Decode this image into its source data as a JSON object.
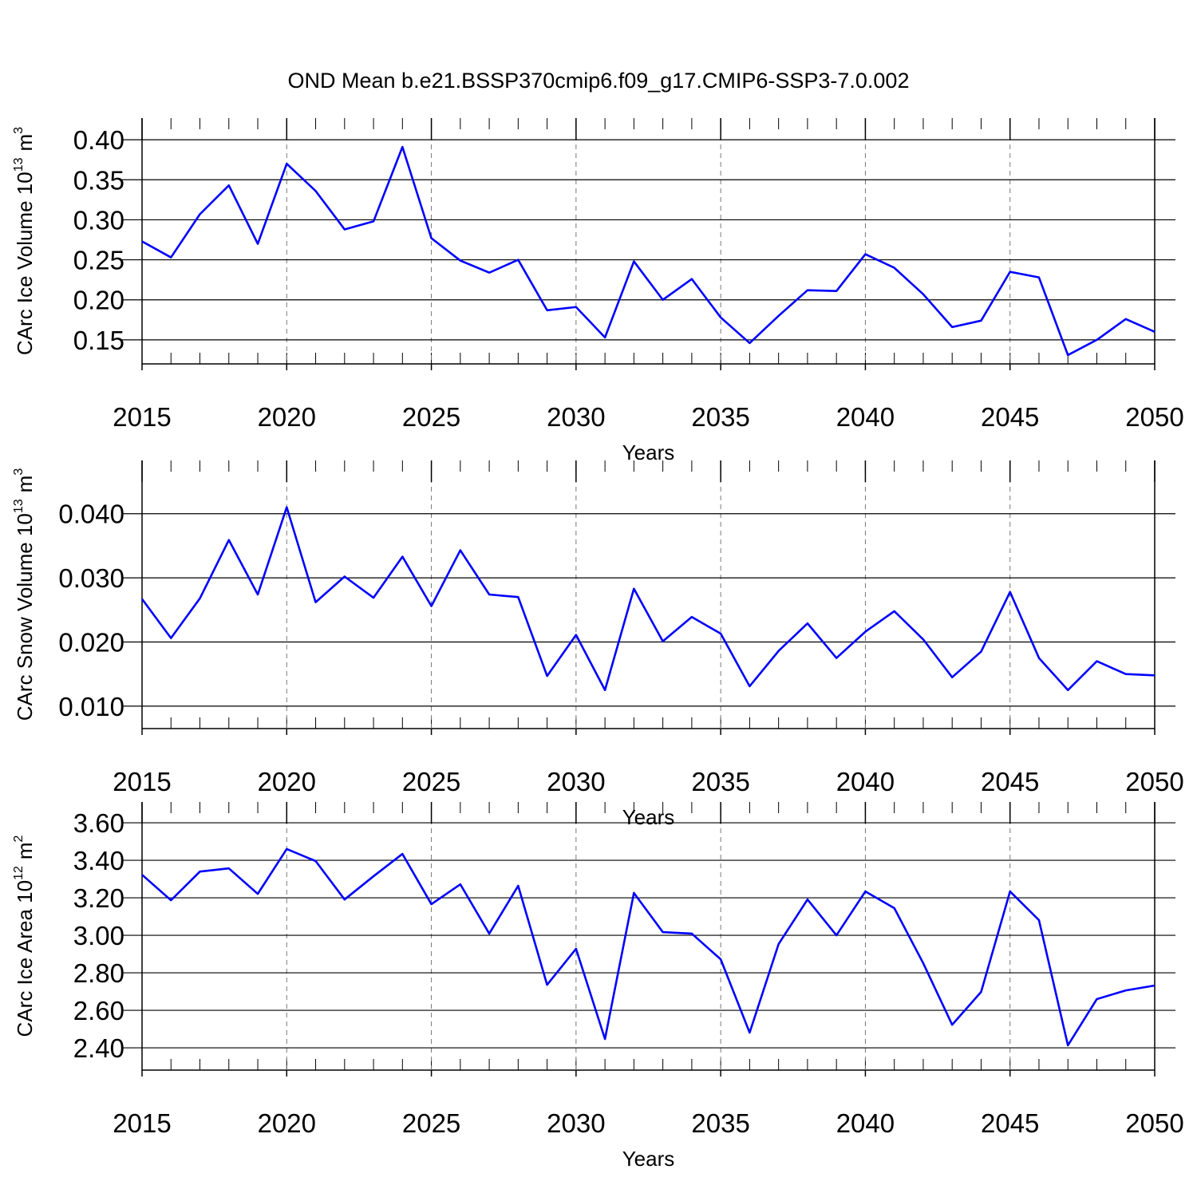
{
  "title": "OND Mean b.e21.BSSP370cmip6.f09_g17.CMIP6-SSP3-7.0.002",
  "chart_data": [
    {
      "type": "line",
      "ylabel": {
        "text": "CArc Ice Volume 10",
        "exp": "13",
        "unit": "m",
        "unit_exp": "3"
      },
      "xlabel": "Years",
      "x": [
        2015,
        2016,
        2017,
        2018,
        2019,
        2020,
        2021,
        2022,
        2023,
        2024,
        2025,
        2026,
        2027,
        2028,
        2029,
        2030,
        2031,
        2032,
        2033,
        2034,
        2035,
        2036,
        2037,
        2038,
        2039,
        2040,
        2041,
        2042,
        2043,
        2044,
        2045,
        2046,
        2047,
        2048,
        2049,
        2050
      ],
      "values": [
        0.273,
        0.253,
        0.307,
        0.343,
        0.27,
        0.37,
        0.336,
        0.288,
        0.298,
        0.391,
        0.277,
        0.249,
        0.234,
        0.25,
        0.187,
        0.191,
        0.153,
        0.248,
        0.2,
        0.226,
        0.178,
        0.146,
        0.18,
        0.212,
        0.211,
        0.257,
        0.24,
        0.207,
        0.166,
        0.174,
        0.235,
        0.228,
        0.131,
        0.15,
        0.176,
        0.16
      ],
      "color": "#0000ff",
      "xlim": [
        2015,
        2050
      ],
      "xticks": [
        2015,
        2020,
        2025,
        2030,
        2035,
        2040,
        2045,
        2050
      ],
      "ylim": [
        0.12,
        0.427
      ],
      "yticks": [
        {
          "value": 0.15,
          "label": "0.15"
        },
        {
          "value": 0.2,
          "label": "0.20"
        },
        {
          "value": 0.25,
          "label": "0.25"
        },
        {
          "value": 0.3,
          "label": "0.30"
        },
        {
          "value": 0.35,
          "label": "0.35"
        },
        {
          "value": 0.4,
          "label": "0.40"
        }
      ],
      "grid": true
    },
    {
      "type": "line",
      "ylabel": {
        "text": "CArc Snow Volume 10",
        "exp": "13",
        "unit": "m",
        "unit_exp": "3"
      },
      "xlabel": "Years",
      "x": [
        2015,
        2016,
        2017,
        2018,
        2019,
        2020,
        2021,
        2022,
        2023,
        2024,
        2025,
        2026,
        2027,
        2028,
        2029,
        2030,
        2031,
        2032,
        2033,
        2034,
        2035,
        2036,
        2037,
        2038,
        2039,
        2040,
        2041,
        2042,
        2043,
        2044,
        2045,
        2046,
        2047,
        2048,
        2049,
        2050
      ],
      "values": [
        0.0267,
        0.0206,
        0.0268,
        0.0359,
        0.0274,
        0.041,
        0.0262,
        0.0302,
        0.0269,
        0.0333,
        0.0256,
        0.0343,
        0.0274,
        0.027,
        0.0147,
        0.0211,
        0.0125,
        0.0283,
        0.0201,
        0.0239,
        0.0213,
        0.0131,
        0.0186,
        0.0229,
        0.0175,
        0.0216,
        0.0248,
        0.0204,
        0.0145,
        0.0185,
        0.0278,
        0.0175,
        0.0125,
        0.017,
        0.015,
        0.0148
      ],
      "color": "#0000ff",
      "xlim": [
        2015,
        2050
      ],
      "xticks": [
        2015,
        2020,
        2025,
        2030,
        2035,
        2040,
        2045,
        2050
      ],
      "ylim": [
        0.0065,
        0.0483
      ],
      "yticks": [
        {
          "value": 0.01,
          "label": "0.010"
        },
        {
          "value": 0.02,
          "label": "0.020"
        },
        {
          "value": 0.03,
          "label": "0.030"
        },
        {
          "value": 0.04,
          "label": "0.040"
        }
      ],
      "grid": true
    },
    {
      "type": "line",
      "ylabel": {
        "text": "CArc Ice Area 10",
        "exp": "12",
        "unit": "m",
        "unit_exp": "2"
      },
      "xlabel": "Years",
      "x": [
        2015,
        2016,
        2017,
        2018,
        2019,
        2020,
        2021,
        2022,
        2023,
        2024,
        2025,
        2026,
        2027,
        2028,
        2029,
        2030,
        2031,
        2032,
        2033,
        2034,
        2035,
        2036,
        2037,
        2038,
        2039,
        2040,
        2041,
        2042,
        2043,
        2044,
        2045,
        2046,
        2047,
        2048,
        2049,
        2050
      ],
      "values": [
        3.323,
        3.187,
        3.34,
        3.357,
        3.221,
        3.46,
        3.396,
        3.191,
        3.315,
        3.434,
        3.166,
        3.272,
        3.009,
        3.264,
        2.736,
        2.928,
        2.447,
        3.226,
        3.017,
        3.009,
        2.872,
        2.481,
        2.953,
        3.191,
        3.0,
        3.234,
        3.145,
        2.851,
        2.523,
        2.698,
        3.234,
        3.081,
        2.413,
        2.66,
        2.706,
        2.732
      ],
      "color": "#0000ff",
      "xlim": [
        2015,
        2050
      ],
      "xticks": [
        2015,
        2020,
        2025,
        2030,
        2035,
        2040,
        2045,
        2050
      ],
      "ylim": [
        2.281,
        3.711
      ],
      "yticks": [
        {
          "value": 2.4,
          "label": "2.40"
        },
        {
          "value": 2.6,
          "label": "2.60"
        },
        {
          "value": 2.8,
          "label": "2.80"
        },
        {
          "value": 3.0,
          "label": "3.00"
        },
        {
          "value": 3.2,
          "label": "3.20"
        },
        {
          "value": 3.4,
          "label": "3.40"
        },
        {
          "value": 3.6,
          "label": "3.60"
        }
      ],
      "grid": true
    }
  ]
}
